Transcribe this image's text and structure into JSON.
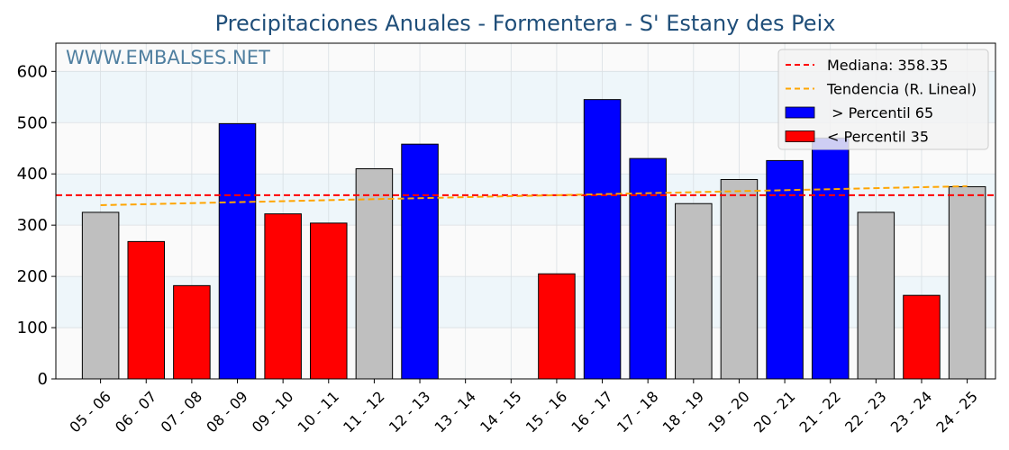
{
  "chart_data": {
    "type": "bar",
    "title": "Precipitaciones Anuales - Formentera - S' Estany des Peix",
    "watermark": "WWW.EMBALSES.NET",
    "categories": [
      "05 - 06",
      "06 - 07",
      "07 - 08",
      "08 - 09",
      "09 - 10",
      "10 - 11",
      "11 - 12",
      "12 - 13",
      "13 - 14",
      "14 - 15",
      "15 - 16",
      "16 - 17",
      "17 - 18",
      "18 - 19",
      "19 - 20",
      "20 - 21",
      "21 - 22",
      "22 - 23",
      "23 - 24",
      "24 - 25"
    ],
    "values": [
      325,
      268,
      182,
      498,
      322,
      304,
      410,
      458,
      null,
      null,
      205,
      545,
      430,
      342,
      389,
      426,
      470,
      325,
      163,
      375
    ],
    "bar_class": [
      "mid",
      "low",
      "low",
      "high",
      "low",
      "low",
      "mid",
      "high",
      null,
      null,
      "low",
      "high",
      "high",
      "mid",
      "mid",
      "high",
      "high",
      "mid",
      "low",
      "mid"
    ],
    "ylim": [
      0,
      655
    ],
    "yticks": [
      0,
      100,
      200,
      300,
      400,
      500,
      600
    ],
    "ytick_labels": [
      "0",
      "100",
      "200",
      "300",
      "400",
      "500",
      "600"
    ],
    "median": 358.35,
    "trend": {
      "start": 339,
      "end": 376
    },
    "legend": {
      "position": "top-right",
      "items": [
        {
          "label": "Mediana: 358.35",
          "kind": "dashed-line",
          "color": "#ff0000"
        },
        {
          "label": "Tendencia (R. Lineal)",
          "kind": "dashed-line",
          "color": "#ffa500"
        },
        {
          "label": " > Percentil 65",
          "kind": "patch",
          "color": "#0000ff"
        },
        {
          "label": "< Percentil 35",
          "kind": "patch",
          "color": "#ff0000"
        }
      ]
    },
    "colors": {
      "high": "#0000ff",
      "low": "#ff0000",
      "mid": "#bfbfbf",
      "median": "#ff0000",
      "trend": "#ffa500",
      "band": "#eef6fa",
      "plot_bg": "#fafafa"
    },
    "grid": true
  }
}
